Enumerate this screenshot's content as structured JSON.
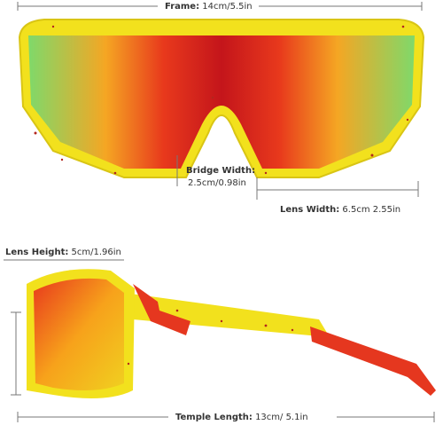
{
  "frame": {
    "label": "Frame:",
    "value": "14cm/5.5in"
  },
  "bridge_width": {
    "label": "Bridge Width:",
    "value": "2.5cm/0.98in"
  },
  "lens_width": {
    "label": "Lens Width:",
    "value": "6.5cm 2.55in"
  },
  "lens_height": {
    "label": "Lens Height:",
    "value": "5cm/1.96in"
  },
  "temple_length": {
    "label": "Temple Length:",
    "value": "13cm/ 5.1in"
  }
}
